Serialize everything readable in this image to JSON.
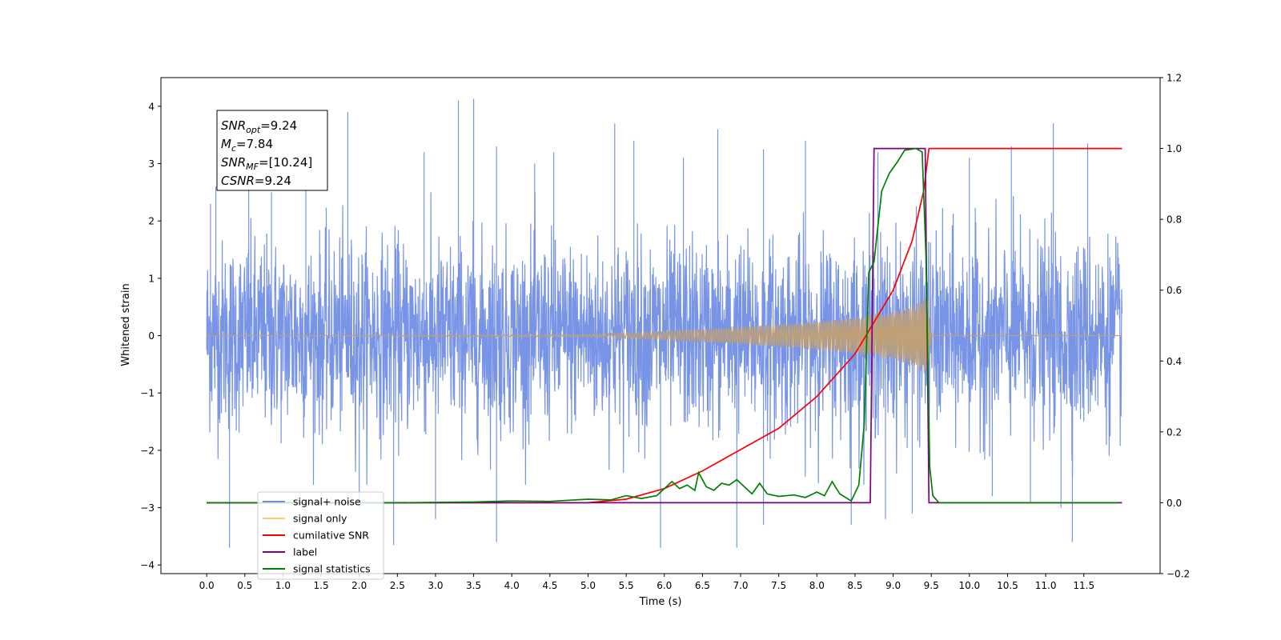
{
  "chart_data": {
    "type": "line",
    "xlabel": "Time (s)",
    "ylabel_left": "Whitened strain",
    "xlim": [
      -0.6,
      12.5
    ],
    "ylim_left": [
      -4.15,
      4.5
    ],
    "ylim_right": [
      -0.2,
      1.2
    ],
    "x_ticks": [
      0.0,
      0.5,
      1.0,
      1.5,
      2.0,
      2.5,
      3.0,
      3.5,
      4.0,
      4.5,
      5.0,
      5.5,
      6.0,
      6.5,
      7.0,
      7.5,
      8.0,
      8.5,
      9.0,
      9.5,
      10.0,
      10.5,
      11.0,
      11.5
    ],
    "x_tick_labels": [
      "0.0",
      "0.5",
      "1.0",
      "1.5",
      "2.0",
      "2.5",
      "3.0",
      "3.5",
      "4.0",
      "4.5",
      "5.0",
      "5.5",
      "6.0",
      "6.5",
      "7.0",
      "7.5",
      "8.0",
      "8.5",
      "9.0",
      "9.5",
      "10.0",
      "10.5",
      "11.0",
      "11.5"
    ],
    "y_left_ticks": [
      -4,
      -3,
      -2,
      -1,
      0,
      1,
      2,
      3,
      4
    ],
    "y_left_tick_labels": [
      "−4",
      "−3",
      "−2",
      "−1",
      "0",
      "1",
      "2",
      "3",
      "4"
    ],
    "y_right_ticks": [
      -0.2,
      0.0,
      0.2,
      0.4,
      0.6,
      0.8,
      1.0,
      1.2
    ],
    "y_right_tick_labels": [
      "−0.2",
      "0.0",
      "0.2",
      "0.4",
      "0.6",
      "0.8",
      "1.0",
      "1.2"
    ],
    "grid": false,
    "legend_position": "lower-left",
    "annotation": {
      "lines": [
        {
          "main": "SNR",
          "sub": "opt",
          "rest": "=9.24"
        },
        {
          "main": "M",
          "sub": "c",
          "rest": "=7.84"
        },
        {
          "main": "SNR",
          "sub": "MF",
          "rest": "=[10.24]"
        },
        {
          "main": "CSNR",
          "sub": "",
          "rest": "=9.24"
        }
      ]
    },
    "series": [
      {
        "name": "signal+ noise",
        "axis": "left",
        "color": "#7894e6",
        "x_range": [
          0.0,
          12.0
        ],
        "noise_envelope": 2.3,
        "peaks": [
          {
            "x": 0.05,
            "y": 2.3
          },
          {
            "x": 0.12,
            "y": 2.6
          },
          {
            "x": 0.3,
            "y": -3.7
          },
          {
            "x": 0.55,
            "y": 2.9
          },
          {
            "x": 0.85,
            "y": 2.5
          },
          {
            "x": 1.3,
            "y": 2.9
          },
          {
            "x": 1.85,
            "y": 3.9
          },
          {
            "x": 2.0,
            "y": -3.0
          },
          {
            "x": 2.45,
            "y": -3.65
          },
          {
            "x": 2.85,
            "y": 3.2
          },
          {
            "x": 3.0,
            "y": -3.2
          },
          {
            "x": 3.3,
            "y": 4.1
          },
          {
            "x": 3.5,
            "y": 4.13
          },
          {
            "x": 3.8,
            "y": -3.6
          },
          {
            "x": 3.8,
            "y": 3.3
          },
          {
            "x": 4.3,
            "y": 3.0
          },
          {
            "x": 4.55,
            "y": 3.2
          },
          {
            "x": 5.35,
            "y": 3.7
          },
          {
            "x": 5.6,
            "y": 3.4
          },
          {
            "x": 5.95,
            "y": -3.7
          },
          {
            "x": 6.25,
            "y": 3.1
          },
          {
            "x": 6.7,
            "y": 3.6
          },
          {
            "x": 6.95,
            "y": -3.7
          },
          {
            "x": 7.3,
            "y": 3.25
          },
          {
            "x": 7.3,
            "y": -3.3
          },
          {
            "x": 7.85,
            "y": 3.4
          },
          {
            "x": 8.45,
            "y": -3.3
          },
          {
            "x": 8.8,
            "y": 3.2
          },
          {
            "x": 8.9,
            "y": -3.2
          },
          {
            "x": 9.25,
            "y": -3.1
          },
          {
            "x": 10.0,
            "y": 3.1
          },
          {
            "x": 10.3,
            "y": -2.8
          },
          {
            "x": 10.55,
            "y": 3.3
          },
          {
            "x": 10.8,
            "y": -2.9
          },
          {
            "x": 11.1,
            "y": 3.7
          },
          {
            "x": 11.2,
            "y": -3.0
          },
          {
            "x": 11.35,
            "y": -3.6
          },
          {
            "x": 11.55,
            "y": 3.35
          }
        ]
      },
      {
        "name": "signal only",
        "axis": "left",
        "color": "#bfa077",
        "x_range": [
          0.0,
          12.0
        ],
        "envelope": [
          {
            "x": 0.0,
            "y": 0.0
          },
          {
            "x": 5.0,
            "y": 0.02
          },
          {
            "x": 6.0,
            "y": 0.08
          },
          {
            "x": 7.0,
            "y": 0.15
          },
          {
            "x": 8.0,
            "y": 0.25
          },
          {
            "x": 8.5,
            "y": 0.32
          },
          {
            "x": 9.0,
            "y": 0.42
          },
          {
            "x": 9.3,
            "y": 0.55
          },
          {
            "x": 9.45,
            "y": 0.7
          },
          {
            "x": 9.5,
            "y": 0.0
          },
          {
            "x": 12.0,
            "y": 0.0
          }
        ]
      },
      {
        "name": "cumilative SNR",
        "axis": "right",
        "color": "#ff0000",
        "points": [
          {
            "x": 0.0,
            "y": 0.0
          },
          {
            "x": 5.0,
            "y": 0.0
          },
          {
            "x": 5.5,
            "y": 0.01
          },
          {
            "x": 6.0,
            "y": 0.04
          },
          {
            "x": 6.5,
            "y": 0.09
          },
          {
            "x": 7.0,
            "y": 0.15
          },
          {
            "x": 7.5,
            "y": 0.21
          },
          {
            "x": 8.0,
            "y": 0.3
          },
          {
            "x": 8.5,
            "y": 0.42
          },
          {
            "x": 9.0,
            "y": 0.6
          },
          {
            "x": 9.25,
            "y": 0.74
          },
          {
            "x": 9.4,
            "y": 0.88
          },
          {
            "x": 9.47,
            "y": 1.0
          },
          {
            "x": 12.0,
            "y": 1.0
          }
        ]
      },
      {
        "name": "label",
        "axis": "right",
        "color": "#800080",
        "points": [
          {
            "x": 0.0,
            "y": 0.0
          },
          {
            "x": 8.7,
            "y": 0.0
          },
          {
            "x": 8.75,
            "y": 1.0
          },
          {
            "x": 9.42,
            "y": 1.0
          },
          {
            "x": 9.47,
            "y": 0.0
          },
          {
            "x": 12.0,
            "y": 0.0
          }
        ]
      },
      {
        "name": "signal statistics",
        "axis": "right",
        "color": "#008000",
        "points": [
          {
            "x": 0.0,
            "y": 0.0
          },
          {
            "x": 2.5,
            "y": 0.0
          },
          {
            "x": 3.5,
            "y": 0.002
          },
          {
            "x": 4.0,
            "y": 0.005
          },
          {
            "x": 4.5,
            "y": 0.004
          },
          {
            "x": 5.0,
            "y": 0.01
          },
          {
            "x": 5.3,
            "y": 0.008
          },
          {
            "x": 5.5,
            "y": 0.02
          },
          {
            "x": 5.7,
            "y": 0.012
          },
          {
            "x": 5.9,
            "y": 0.02
          },
          {
            "x": 6.0,
            "y": 0.04
          },
          {
            "x": 6.1,
            "y": 0.06
          },
          {
            "x": 6.2,
            "y": 0.04
          },
          {
            "x": 6.3,
            "y": 0.05
          },
          {
            "x": 6.4,
            "y": 0.035
          },
          {
            "x": 6.45,
            "y": 0.085
          },
          {
            "x": 6.55,
            "y": 0.045
          },
          {
            "x": 6.65,
            "y": 0.035
          },
          {
            "x": 6.75,
            "y": 0.055
          },
          {
            "x": 6.85,
            "y": 0.05
          },
          {
            "x": 6.95,
            "y": 0.065
          },
          {
            "x": 7.05,
            "y": 0.045
          },
          {
            "x": 7.15,
            "y": 0.025
          },
          {
            "x": 7.25,
            "y": 0.055
          },
          {
            "x": 7.35,
            "y": 0.025
          },
          {
            "x": 7.5,
            "y": 0.018
          },
          {
            "x": 7.7,
            "y": 0.022
          },
          {
            "x": 7.85,
            "y": 0.015
          },
          {
            "x": 8.0,
            "y": 0.03
          },
          {
            "x": 8.1,
            "y": 0.02
          },
          {
            "x": 8.2,
            "y": 0.06
          },
          {
            "x": 8.3,
            "y": 0.025
          },
          {
            "x": 8.45,
            "y": 0.005
          },
          {
            "x": 8.55,
            "y": 0.05
          },
          {
            "x": 8.62,
            "y": 0.22
          },
          {
            "x": 8.68,
            "y": 0.65
          },
          {
            "x": 8.75,
            "y": 0.68
          },
          {
            "x": 8.85,
            "y": 0.88
          },
          {
            "x": 8.95,
            "y": 0.93
          },
          {
            "x": 9.05,
            "y": 0.96
          },
          {
            "x": 9.15,
            "y": 0.995
          },
          {
            "x": 9.3,
            "y": 1.0
          },
          {
            "x": 9.38,
            "y": 0.99
          },
          {
            "x": 9.43,
            "y": 0.7
          },
          {
            "x": 9.48,
            "y": 0.1
          },
          {
            "x": 9.52,
            "y": 0.02
          },
          {
            "x": 9.6,
            "y": 0.0
          },
          {
            "x": 11.95,
            "y": 0.0
          }
        ]
      }
    ]
  },
  "legend": {
    "items": [
      {
        "label": "signal+ noise",
        "color": "#6f8fe0"
      },
      {
        "label": "signal only",
        "color": "#ffc978"
      },
      {
        "label": "cumilative SNR",
        "color": "#ff0000"
      },
      {
        "label": "label",
        "color": "#800080"
      },
      {
        "label": "signal statistics",
        "color": "#008000"
      }
    ]
  }
}
